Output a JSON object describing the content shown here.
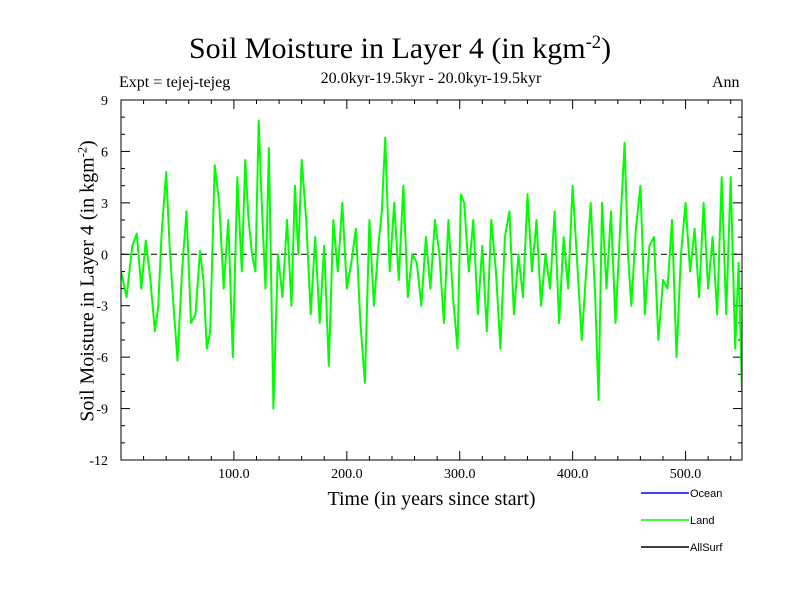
{
  "chart_data": {
    "type": "line",
    "title": "Soil Moisture in Layer 4 (in kgm",
    "title_sup": "-2",
    "title_close": ")",
    "subtitle": "20.0kyr-19.5kyr - 20.0kyr-19.5kyr",
    "expt_label": "Expt = tejej-tejeg",
    "season_label": "Ann",
    "xlabel": "Time (in years since start)",
    "ylabel": "Soil Moisture in Layer 4 (in kgm",
    "ylabel_sup": "-2",
    "ylabel_close": ")",
    "xlim": [
      0,
      550
    ],
    "ylim": [
      -12,
      9
    ],
    "x_ticks": [
      100,
      200,
      300,
      400,
      500
    ],
    "x_tick_labels": [
      "100.0",
      "200.0",
      "300.0",
      "400.0",
      "500.0"
    ],
    "y_ticks": [
      -12,
      -9,
      -6,
      -3,
      0,
      3,
      6,
      9
    ],
    "y_tick_labels": [
      "-12",
      "-9",
      "-6",
      "-3",
      "0",
      "3",
      "6",
      "9"
    ],
    "zero_line": "dashed",
    "legend": [
      {
        "name": "Ocean",
        "color": "#0000ff"
      },
      {
        "name": "Land",
        "color": "#00ff00"
      },
      {
        "name": "AllSurf",
        "color": "#000000"
      }
    ],
    "series": [
      {
        "name": "Land",
        "color": "#00ff00",
        "x": [
          0,
          5,
          10,
          14,
          18,
          22,
          26,
          30,
          33,
          36,
          40,
          43,
          46,
          50,
          54,
          58,
          62,
          66,
          70,
          73,
          76,
          79,
          83,
          87,
          91,
          95,
          99,
          103,
          107,
          110,
          113,
          116,
          119,
          122,
          125,
          128,
          131,
          135,
          139,
          143,
          147,
          151,
          154,
          157,
          160,
          164,
          168,
          172,
          176,
          180,
          184,
          188,
          192,
          196,
          200,
          204,
          208,
          212,
          216,
          220,
          224,
          228,
          231,
          234,
          238,
          242,
          246,
          250,
          254,
          258,
          262,
          266,
          270,
          274,
          278,
          282,
          286,
          290,
          294,
          298,
          301,
          304,
          308,
          312,
          316,
          320,
          324,
          328,
          332,
          336,
          340,
          344,
          348,
          352,
          356,
          360,
          364,
          368,
          372,
          376,
          380,
          384,
          388,
          392,
          396,
          400,
          404,
          408,
          412,
          416,
          420,
          423,
          426,
          430,
          434,
          438,
          442,
          446,
          449,
          452,
          456,
          460,
          464,
          468,
          472,
          476,
          480,
          484,
          488,
          492,
          496,
          500,
          504,
          508,
          512,
          516,
          520,
          524,
          528,
          532,
          536,
          540,
          544,
          547,
          550
        ],
        "values": [
          -1.0,
          -2.5,
          0.5,
          1.2,
          -2.0,
          0.8,
          -1.5,
          -4.5,
          -3.0,
          1.2,
          4.8,
          0.5,
          -2.5,
          -6.2,
          -1.0,
          2.5,
          -4.0,
          -3.5,
          0.2,
          -1.5,
          -5.5,
          -4.5,
          5.2,
          3.0,
          -2.0,
          2.0,
          -6.0,
          4.5,
          -1.0,
          5.5,
          2.0,
          0.0,
          -1.0,
          7.8,
          2.5,
          -2.0,
          6.2,
          -9.0,
          0.0,
          -2.5,
          2.0,
          -3.0,
          4.0,
          0.0,
          5.5,
          2.0,
          -3.5,
          1.0,
          -4.0,
          0.5,
          -6.5,
          2.0,
          -1.0,
          3.0,
          -2.0,
          -0.5,
          1.5,
          -4.0,
          -7.5,
          2.0,
          -3.0,
          0.5,
          2.5,
          6.8,
          -1.0,
          3.0,
          -1.5,
          4.0,
          -2.5,
          0.0,
          -0.5,
          -3.0,
          1.0,
          -2.0,
          2.0,
          0.0,
          -4.0,
          2.0,
          -2.5,
          -5.5,
          3.5,
          3.0,
          -1.0,
          2.0,
          -3.5,
          0.5,
          -4.5,
          2.0,
          -1.0,
          -5.5,
          1.0,
          2.5,
          -3.5,
          0.0,
          -2.5,
          3.5,
          -1.0,
          2.0,
          -3.0,
          0.0,
          -2.0,
          2.5,
          -4.0,
          1.0,
          -2.0,
          4.0,
          -0.5,
          -5.0,
          -1.0,
          3.0,
          -2.5,
          -8.5,
          3.0,
          -2.0,
          2.5,
          -4.0,
          1.5,
          6.5,
          0.0,
          -3.0,
          1.5,
          4.0,
          -3.5,
          0.5,
          1.0,
          -5.0,
          -1.5,
          -2.0,
          2.0,
          -6.0,
          0.0,
          3.0,
          -1.0,
          1.5,
          -2.5,
          3.0,
          -2.0,
          1.0,
          -3.5,
          4.5,
          -3.5,
          4.5,
          -5.5,
          -0.5,
          -8.0
        ]
      }
    ]
  }
}
